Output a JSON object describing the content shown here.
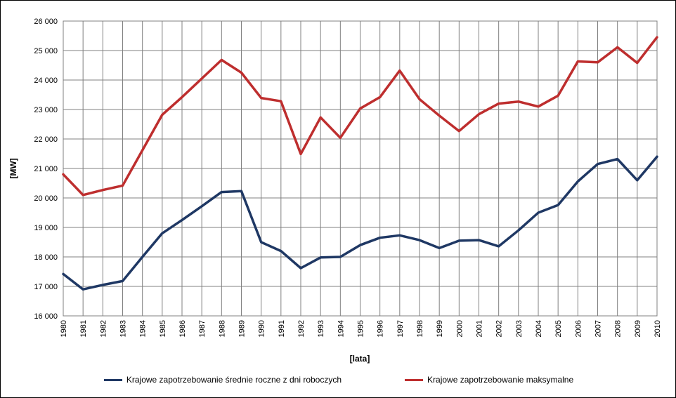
{
  "chart_data": {
    "type": "line",
    "title": "",
    "xlabel": "[lata]",
    "ylabel": "[MW]",
    "ylim": [
      16000,
      26000
    ],
    "ytick_step": 1000,
    "grid": true,
    "legend_position": "bottom",
    "x": [
      1980,
      1981,
      1982,
      1983,
      1984,
      1985,
      1986,
      1987,
      1988,
      1989,
      1990,
      1991,
      1992,
      1993,
      1994,
      1995,
      1996,
      1997,
      1998,
      1999,
      2000,
      2001,
      2002,
      2003,
      2004,
      2005,
      2006,
      2007,
      2008,
      2009,
      2010
    ],
    "x_tick_labels": [
      "1980",
      "1981",
      "1982",
      "1983",
      "1984",
      "1985",
      "1986",
      "1987",
      "1988",
      "1989",
      "1990",
      "1991",
      "1992",
      "1993",
      "1994",
      "1995",
      "1996",
      "1997",
      "1998",
      "1999",
      "2000",
      "2001",
      "2002",
      "2003",
      "2004",
      "2005",
      "2006",
      "2007",
      "2008",
      "2009",
      "2010"
    ],
    "y_tick_labels": [
      "16 000",
      "17 000",
      "18 000",
      "19 000",
      "20 000",
      "21 000",
      "22 000",
      "23 000",
      "24 000",
      "25 000",
      "26 000"
    ],
    "series": [
      {
        "name": "Krajowe zapotrzebowanie średnie roczne z dni roboczych",
        "color": "#1F3864",
        "values": [
          17420,
          16900,
          17050,
          17180,
          18000,
          18800,
          19250,
          19720,
          20200,
          20230,
          18500,
          18200,
          17620,
          17980,
          18000,
          18400,
          18650,
          18730,
          18570,
          18300,
          18550,
          18570,
          18360,
          18900,
          19500,
          19760,
          20560,
          21150,
          21320,
          20600,
          21400
        ]
      },
      {
        "name": "Krajowe zapotrzebowanie maksymalne",
        "color": "#BE2E2E",
        "values": [
          20800,
          20100,
          20270,
          20420,
          21620,
          22820,
          23420,
          24050,
          24680,
          24250,
          23390,
          23280,
          21490,
          22730,
          22040,
          23030,
          23420,
          24320,
          23350,
          22790,
          22270,
          22840,
          23200,
          23270,
          23100,
          23470,
          24630,
          24600,
          25110,
          24580,
          25450
        ]
      }
    ]
  }
}
